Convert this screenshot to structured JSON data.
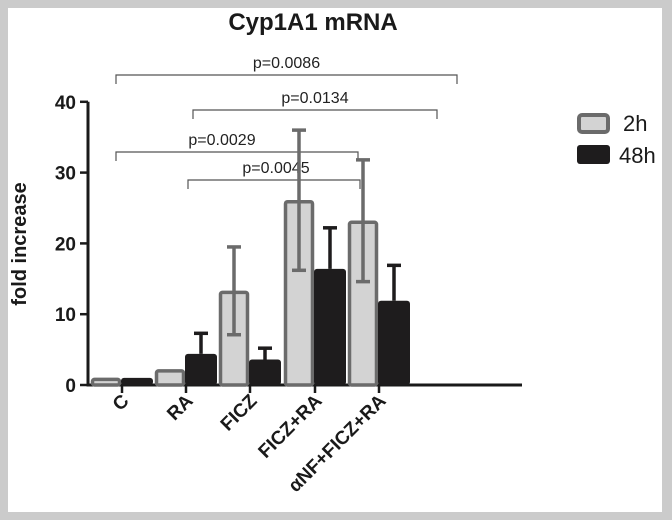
{
  "chart_data": {
    "type": "bar",
    "title": "Cyp1A1 mRNA",
    "xlabel": "",
    "ylabel": "fold increase",
    "ylim": [
      0,
      40
    ],
    "yticks": [
      0,
      10,
      20,
      30,
      40
    ],
    "grid": false,
    "legend_position": "right",
    "categories": [
      "C",
      "RA",
      "FICZ",
      "FICZ+RA",
      "αNF+FICZ+RA"
    ],
    "series": [
      {
        "name": "2h",
        "color": "#d3d3d3",
        "edge": "#6b6b6b",
        "values": [
          1.0,
          2.2,
          13.3,
          26.1,
          23.2
        ],
        "error": [
          0.1,
          0.3,
          6.2,
          9.9,
          8.6
        ]
      },
      {
        "name": "48h",
        "color": "#1e1c1d",
        "edge": "#1e1c1d",
        "values": [
          1.0,
          4.4,
          3.6,
          16.4,
          11.9
        ],
        "error": [
          0.1,
          2.9,
          1.6,
          5.8,
          5.0
        ]
      }
    ],
    "annotations": [
      {
        "label": "p=0.0086",
        "from": "C",
        "to": "αNF+FICZ+RA"
      },
      {
        "label": "p=0.0134",
        "from": "RA",
        "to": "αNF+FICZ+RA"
      },
      {
        "label": "p=0.0029",
        "from": "C",
        "to": "FICZ+RA"
      },
      {
        "label": "p=0.0045",
        "from": "RA",
        "to": "FICZ+RA"
      }
    ]
  },
  "legend": {
    "items": [
      {
        "label": "2h"
      },
      {
        "label": "48h"
      }
    ]
  }
}
